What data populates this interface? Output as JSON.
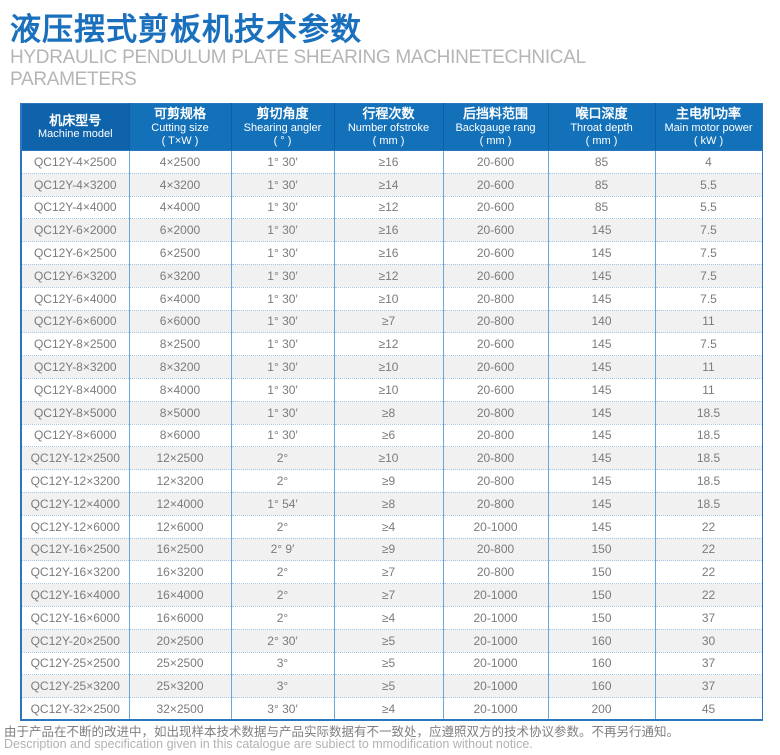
{
  "page": {
    "title": "液压摆式剪板机技术参数",
    "subtitle": "HYDRAULIC PENDULUM PLATE SHEARING MACHINETECHNICAL PARAMETERS"
  },
  "colors": {
    "title_blue": "#1a70bd",
    "subtitle_gray": "#b5b5b5",
    "header_bg": "#1371ba",
    "header_first_col_bg": "#0e63aa",
    "table_border": "#2a77c0",
    "column_line": "#6aa6da",
    "row_dotted_line": "#a5c9ea",
    "stripe_bg": "#f1f1f1",
    "body_text": "#7b7b7b"
  },
  "table": {
    "columns": [
      {
        "key": "model",
        "zh": "机床型号",
        "en": "Machine model",
        "unit": ""
      },
      {
        "key": "cutting",
        "zh": "可剪规格",
        "en": "Cutting size",
        "unit": "( T×W )"
      },
      {
        "key": "angle",
        "zh": "剪切角度",
        "en": "Shearing angler",
        "unit": "( ° )"
      },
      {
        "key": "strokes",
        "zh": "行程次数",
        "en": "Number ofstroke",
        "unit": "( mm )"
      },
      {
        "key": "backgauge",
        "zh": "后挡料范围",
        "en": "Backgauge rang",
        "unit": "( mm )"
      },
      {
        "key": "throat",
        "zh": "喉口深度",
        "en": "Throat depth",
        "unit": "( mm )"
      },
      {
        "key": "power",
        "zh": "主电机功率",
        "en": "Main motor power",
        "unit": "( kW )"
      }
    ],
    "rows": [
      [
        "QC12Y-4×2500",
        "4×2500",
        "1° 30′",
        "≥16",
        "20-600",
        "85",
        "4"
      ],
      [
        "QC12Y-4×3200",
        "4×3200",
        "1° 30′",
        "≥14",
        "20-600",
        "85",
        "5.5"
      ],
      [
        "QC12Y-4×4000",
        "4×4000",
        "1° 30′",
        "≥12",
        "20-600",
        "85",
        "5.5"
      ],
      [
        "QC12Y-6×2000",
        "6×2000",
        "1° 30′",
        "≥16",
        "20-600",
        "145",
        "7.5"
      ],
      [
        "QC12Y-6×2500",
        "6×2500",
        "1° 30′",
        "≥16",
        "20-600",
        "145",
        "7.5"
      ],
      [
        "QC12Y-6×3200",
        "6×3200",
        "1° 30′",
        "≥12",
        "20-600",
        "145",
        "7.5"
      ],
      [
        "QC12Y-6×4000",
        "6×4000",
        "1° 30′",
        "≥10",
        "20-800",
        "145",
        "7.5"
      ],
      [
        "QC12Y-6×6000",
        "6×6000",
        "1° 30′",
        "≥7",
        "20-800",
        "140",
        "11"
      ],
      [
        "QC12Y-8×2500",
        "8×2500",
        "1° 30′",
        "≥12",
        "20-600",
        "145",
        "7.5"
      ],
      [
        "QC12Y-8×3200",
        "8×3200",
        "1° 30′",
        "≥10",
        "20-600",
        "145",
        "11"
      ],
      [
        "QC12Y-8×4000",
        "8×4000",
        "1° 30′",
        "≥10",
        "20-600",
        "145",
        "11"
      ],
      [
        "QC12Y-8×5000",
        "8×5000",
        "1° 30′",
        "≥8",
        "20-800",
        "145",
        "18.5"
      ],
      [
        "QC12Y-8×6000",
        "8×6000",
        "1° 30′",
        "≥6",
        "20-800",
        "145",
        "18.5"
      ],
      [
        "QC12Y-12×2500",
        "12×2500",
        "2°",
        "≥10",
        "20-800",
        "145",
        "18.5"
      ],
      [
        "QC12Y-12×3200",
        "12×3200",
        "2°",
        "≥9",
        "20-800",
        "145",
        "18.5"
      ],
      [
        "QC12Y-12×4000",
        "12×4000",
        "1° 54′",
        "≥8",
        "20-800",
        "145",
        "18.5"
      ],
      [
        "QC12Y-12×6000",
        "12×6000",
        "2°",
        "≥4",
        "20-1000",
        "145",
        "22"
      ],
      [
        "QC12Y-16×2500",
        "16×2500",
        "2° 9′",
        "≥9",
        "20-800",
        "150",
        "22"
      ],
      [
        "QC12Y-16×3200",
        "16×3200",
        "2°",
        "≥7",
        "20-800",
        "150",
        "22"
      ],
      [
        "QC12Y-16×4000",
        "16×4000",
        "2°",
        "≥7",
        "20-1000",
        "150",
        "22"
      ],
      [
        "QC12Y-16×6000",
        "16×6000",
        "2°",
        "≥4",
        "20-1000",
        "150",
        "37"
      ],
      [
        "QC12Y-20×2500",
        "20×2500",
        "2° 30′",
        "≥5",
        "20-1000",
        "160",
        "30"
      ],
      [
        "QC12Y-25×2500",
        "25×2500",
        "3°",
        "≥5",
        "20-1000",
        "160",
        "37"
      ],
      [
        "QC12Y-25×3200",
        "25×3200",
        "3°",
        "≥5",
        "20-1000",
        "160",
        "37"
      ],
      [
        "QC12Y-32×2500",
        "32×2500",
        "3° 30′",
        "≥4",
        "20-1000",
        "200",
        "45"
      ]
    ]
  },
  "footer": {
    "zh": "由于产品在不断的改进中，如出现样本技术数据与产品实际数据有不一致处，应遵照双方的技术协议参数。不再另行通知。",
    "en": "Description and specification given in this catalogue are subiect to mmodification without notice."
  }
}
